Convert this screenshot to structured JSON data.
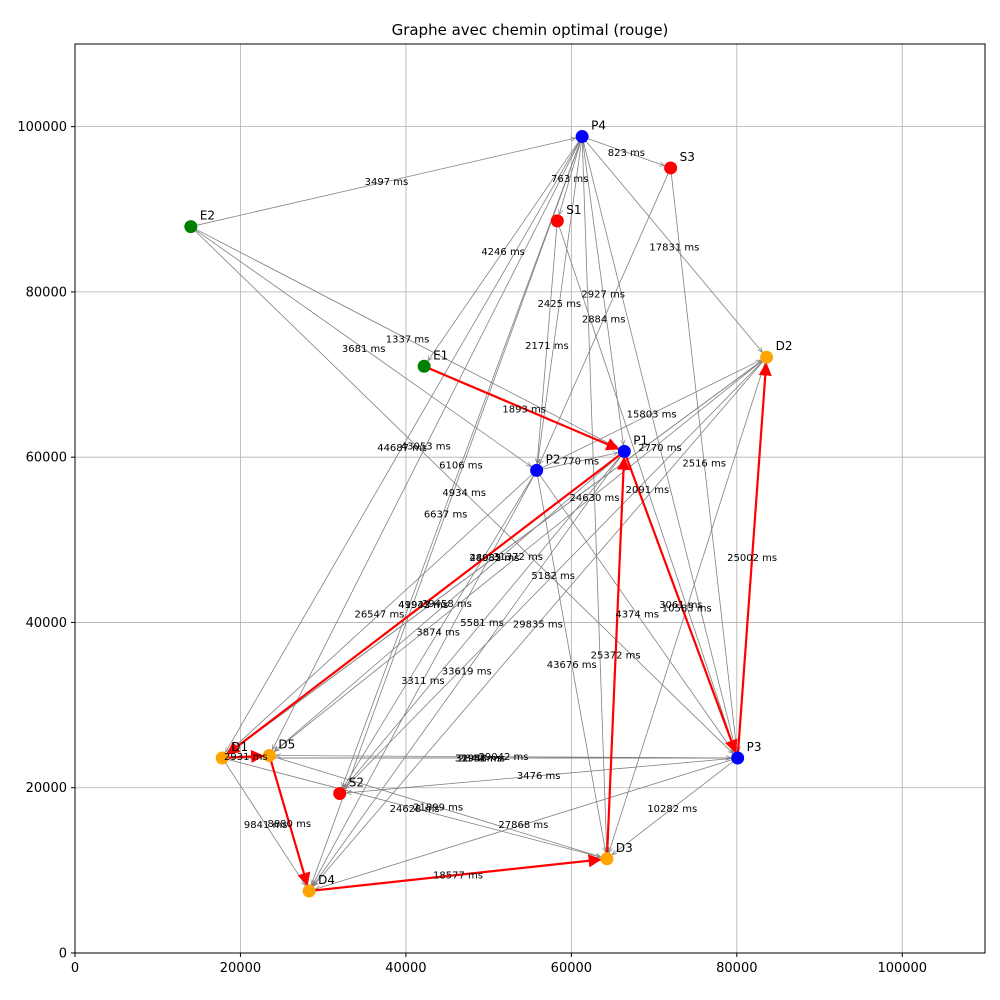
{
  "chart_data": {
    "type": "scatter",
    "title": "Graphe avec chemin optimal (rouge)",
    "xlabel": "",
    "ylabel": "",
    "xlim": [
      0,
      110000
    ],
    "ylim": [
      0,
      110000
    ],
    "grid": true,
    "x_ticks": [
      0,
      20000,
      40000,
      60000,
      80000,
      100000
    ],
    "y_ticks": [
      0,
      20000,
      40000,
      60000,
      80000,
      100000
    ],
    "x_tick_labels": [
      "0",
      "20000",
      "40000",
      "60000",
      "80000",
      "100000"
    ],
    "y_tick_labels": [
      "0",
      "20000",
      "40000",
      "60000",
      "80000",
      "100000"
    ],
    "colors": {
      "E": "#008000",
      "S": "#ff0000",
      "P": "#0000ff",
      "D": "#ffa500",
      "edge": "#808080",
      "path": "#ff0000"
    },
    "nodes": [
      {
        "id": "P4",
        "x": 61300,
        "y": 98800,
        "group": "P"
      },
      {
        "id": "S3",
        "x": 72000,
        "y": 95000,
        "group": "S"
      },
      {
        "id": "E2",
        "x": 14000,
        "y": 87900,
        "group": "E"
      },
      {
        "id": "S1",
        "x": 58300,
        "y": 88600,
        "group": "S"
      },
      {
        "id": "D2",
        "x": 83600,
        "y": 72100,
        "group": "D"
      },
      {
        "id": "E1",
        "x": 42200,
        "y": 71000,
        "group": "E"
      },
      {
        "id": "P1",
        "x": 66400,
        "y": 60700,
        "group": "P"
      },
      {
        "id": "P2",
        "x": 55800,
        "y": 58400,
        "group": "P"
      },
      {
        "id": "P3",
        "x": 80100,
        "y": 23600,
        "group": "P"
      },
      {
        "id": "D1",
        "x": 17800,
        "y": 23600,
        "group": "D"
      },
      {
        "id": "D5",
        "x": 23500,
        "y": 23900,
        "group": "D"
      },
      {
        "id": "S2",
        "x": 32000,
        "y": 19300,
        "group": "S"
      },
      {
        "id": "D3",
        "x": 64300,
        "y": 11400,
        "group": "D"
      },
      {
        "id": "D4",
        "x": 28300,
        "y": 7500,
        "group": "D"
      }
    ],
    "edges": [
      {
        "from": "P4",
        "to": "S3",
        "label": "823 ms"
      },
      {
        "from": "E2",
        "to": "P4",
        "label": "3497 ms"
      },
      {
        "from": "P4",
        "to": "S1",
        "label": "763 ms"
      },
      {
        "from": "P4",
        "to": "D2",
        "label": "17831 ms"
      },
      {
        "from": "P4",
        "to": "P2",
        "label": "2425 ms"
      },
      {
        "from": "P4",
        "to": "E1",
        "label": "4246 ms"
      },
      {
        "from": "P4",
        "to": "P1",
        "label": "2927 ms"
      },
      {
        "from": "P4",
        "to": "P3",
        "label": "2770 ms"
      },
      {
        "from": "P4",
        "to": "D1",
        "label": "44687 ms"
      },
      {
        "from": "P4",
        "to": "D5",
        "label": "43053 ms"
      },
      {
        "from": "P4",
        "to": "S2",
        "label": "6106 ms"
      },
      {
        "from": "P4",
        "to": "D4",
        "label": "6637 ms"
      },
      {
        "from": "P4",
        "to": "D3",
        "label": "24630 ms"
      },
      {
        "from": "S3",
        "to": "P2",
        "label": "2884 ms"
      },
      {
        "from": "S3",
        "to": "P3",
        "label": "2516 ms"
      },
      {
        "from": "S1",
        "to": "P2",
        "label": "2171 ms"
      },
      {
        "from": "S1",
        "to": "P3",
        "label": "2091 ms"
      },
      {
        "from": "E2",
        "to": "P2",
        "label": "3681 ms"
      },
      {
        "from": "E2",
        "to": "P1",
        "label": "1337 ms"
      },
      {
        "from": "E2",
        "to": "P3",
        "label": "4934 ms"
      },
      {
        "from": "E1",
        "to": "P1",
        "label": "1893 ms"
      },
      {
        "from": "P2",
        "to": "P1",
        "label": "770 ms"
      },
      {
        "from": "P2",
        "to": "P3",
        "label": "4374 ms"
      },
      {
        "from": "P2",
        "to": "D3",
        "label": "43676 ms"
      },
      {
        "from": "P2",
        "to": "D1",
        "label": "26547 ms"
      },
      {
        "from": "P2",
        "to": "S2",
        "label": "3874 ms"
      },
      {
        "from": "P2",
        "to": "D4",
        "label": "3311 ms"
      },
      {
        "from": "P2",
        "to": "D2",
        "label": "15803 ms"
      },
      {
        "from": "P1",
        "to": "D1",
        "label": "41933 ms"
      },
      {
        "from": "P1",
        "to": "D5",
        "label": "39458 ms"
      },
      {
        "from": "P1",
        "to": "D4",
        "label": "33619 ms"
      },
      {
        "from": "P1",
        "to": "D3",
        "label": "25372 ms"
      },
      {
        "from": "P1",
        "to": "P3",
        "label": "3061 ms"
      },
      {
        "from": "P1",
        "to": "S2",
        "label": "5581 ms"
      },
      {
        "from": "D2",
        "to": "P3",
        "label": "25002 ms"
      },
      {
        "from": "D2",
        "to": "D1",
        "label": "44985 ms"
      },
      {
        "from": "D2",
        "to": "D5",
        "label": "31372 ms"
      },
      {
        "from": "D2",
        "to": "D4",
        "label": "29835 ms"
      },
      {
        "from": "D2",
        "to": "S2",
        "label": "5182 ms"
      },
      {
        "from": "D2",
        "to": "D3",
        "label": "10583 ms"
      },
      {
        "from": "P3",
        "to": "D1",
        "label": "31951 ms"
      },
      {
        "from": "P3",
        "to": "D5",
        "label": "29042 ms"
      },
      {
        "from": "P3",
        "to": "S2",
        "label": "3476 ms"
      },
      {
        "from": "P3",
        "to": "D3",
        "label": "10282 ms"
      },
      {
        "from": "P3",
        "to": "D4",
        "label": "27868 ms"
      },
      {
        "from": "D1",
        "to": "D3",
        "label": "24628 ms"
      },
      {
        "from": "D5",
        "to": "D3",
        "label": "21899 ms"
      },
      {
        "from": "D1",
        "to": "D5",
        "label": "2931 ms"
      },
      {
        "from": "D1",
        "to": "D4",
        "label": "9841 ms"
      },
      {
        "from": "D5",
        "to": "D4",
        "label": "8880 ms"
      },
      {
        "from": "D4",
        "to": "D3",
        "label": "18577 ms"
      },
      {
        "from": "P1",
        "to": "D1",
        "label": "49942 ms"
      },
      {
        "from": "D2",
        "to": "D1",
        "label": "28032 ms"
      },
      {
        "from": "D1",
        "to": "P3",
        "label": "32948 ms"
      },
      {
        "from": "D1",
        "to": "P3",
        "label": "2840 ms"
      }
    ],
    "optimal_path": [
      "E1",
      "P1",
      "D1",
      "D5",
      "D4",
      "D3",
      "P1",
      "P3",
      "D2"
    ]
  }
}
